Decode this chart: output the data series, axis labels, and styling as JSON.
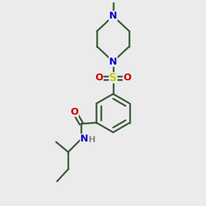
{
  "bg_color": "#ebebeb",
  "bond_color": "#3a5a3a",
  "bond_width": 1.8,
  "atom_colors": {
    "N": "#0000cc",
    "O": "#cc0000",
    "S": "#cccc00",
    "C": "#3a5a3a",
    "H": "#888888"
  },
  "font_size": 9,
  "figsize": [
    3.0,
    3.0
  ],
  "dpi": 100
}
